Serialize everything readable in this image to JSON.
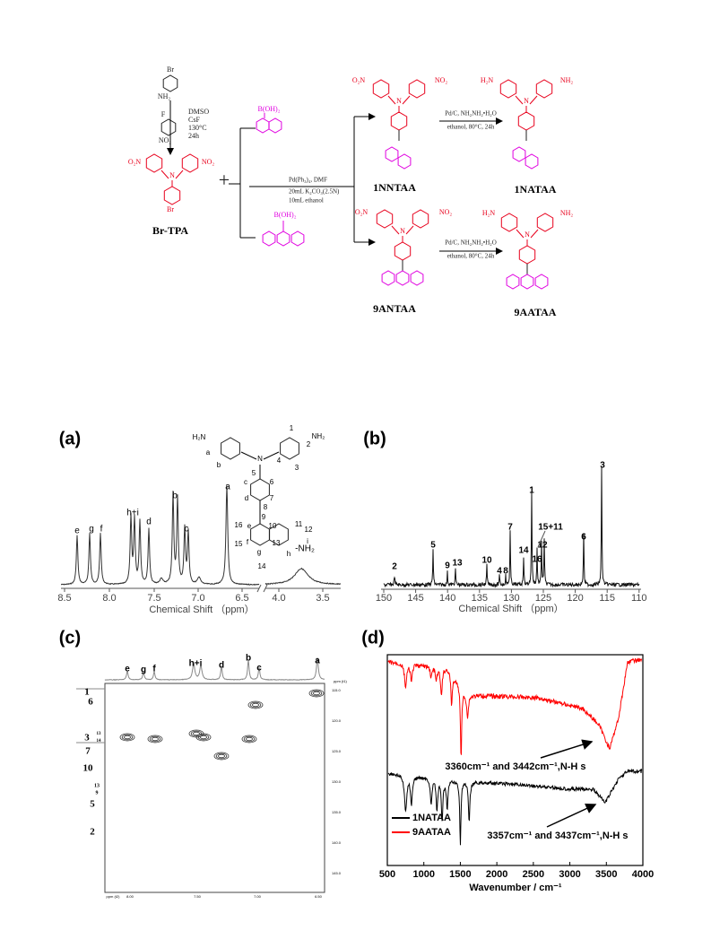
{
  "scheme": {
    "labels": [
      "Br",
      "NH₂",
      "F",
      "NO₂",
      "DMSO",
      "CsF",
      "130°C",
      "24h",
      "O₂N",
      "NO₂",
      "Br",
      "+",
      "B(OH)₂",
      "B(OH)₂",
      "Pd(Ph₃)₄, DMF",
      "20mL K₂CO₃(2.5N)",
      "10mL ethanol",
      "O₂N",
      "NO₂",
      "Pd/C, NH₂NH₂•H₂O",
      "ethanol, 80°C, 24h",
      "H₂N",
      "NH₂",
      "O₂N",
      "NO₂",
      "Pd/C, NH₂NH₂•H₂O",
      "ethanol, 80°C, 24h",
      "H₂N",
      "NH₂",
      "N",
      "N",
      "N",
      "N",
      "N"
    ],
    "compounds": [
      "Br-TPA",
      "1NNTAA",
      "1NATAA",
      "9ANTAA",
      "9AATAA"
    ]
  },
  "panels": {
    "a": {
      "label": "(a)",
      "xlabel": "Chemical Shift （ppm）",
      "xticks": [
        "8.5",
        "8.0",
        "7.5",
        "7.0",
        "6.5",
        "4.0",
        "3.5"
      ],
      "peaks": [
        "e",
        "g",
        "f",
        "h+i",
        "d",
        "b",
        "c",
        "a",
        "-NH₂"
      ],
      "structure": [
        "H₂N",
        "NH₂",
        "N",
        "a",
        "b",
        "1",
        "2",
        "3",
        "4",
        "5",
        "6",
        "7",
        "8",
        "9",
        "10",
        "11",
        "12",
        "13",
        "14",
        "15",
        "16",
        "c",
        "d",
        "e",
        "f",
        "g",
        "h",
        "i"
      ]
    },
    "b": {
      "label": "(b)",
      "xlabel": "Chemical Shift （ppm）",
      "xticks": [
        "150",
        "145",
        "140",
        "135",
        "130",
        "125",
        "120",
        "115",
        "110"
      ],
      "peaks": [
        "2",
        "5",
        "9",
        "13",
        "10",
        "4",
        "8",
        "7",
        "14",
        "1",
        "15+11",
        "12",
        "16",
        "6",
        "3"
      ]
    },
    "c": {
      "label": "(c)",
      "top": [
        "e",
        "g",
        "f",
        "h+i",
        "d",
        "b",
        "c",
        "a"
      ],
      "left": [
        "1",
        "6",
        "3",
        "13",
        "14",
        "7",
        "10",
        "13",
        "9",
        "5",
        "2"
      ],
      "right_ticks": [
        "115.0",
        "120.0",
        "125.0",
        "130.0",
        "135.0",
        "140.0",
        "145.0"
      ],
      "bottom_ticks": [
        "8.00",
        "7.50",
        "7.00",
        "6.50"
      ],
      "t2": "ppm (t2)",
      "t1": "ppm (t1)"
    },
    "d": {
      "label": "(d)",
      "xlabel": "Wavenumber / cm⁻¹",
      "xticks": [
        "500",
        "1000",
        "1500",
        "2000",
        "2500",
        "3000",
        "3500",
        "4000"
      ],
      "annotations": [
        "3360cm⁻¹ and 3442cm⁻¹,N-H s",
        "3357cm⁻¹ and 3437cm⁻¹,N-H s"
      ],
      "legend": [
        {
          "name": "1NATAA",
          "color": "#000000"
        },
        {
          "name": "9AATAA",
          "color": "#ff0000"
        }
      ]
    }
  }
}
